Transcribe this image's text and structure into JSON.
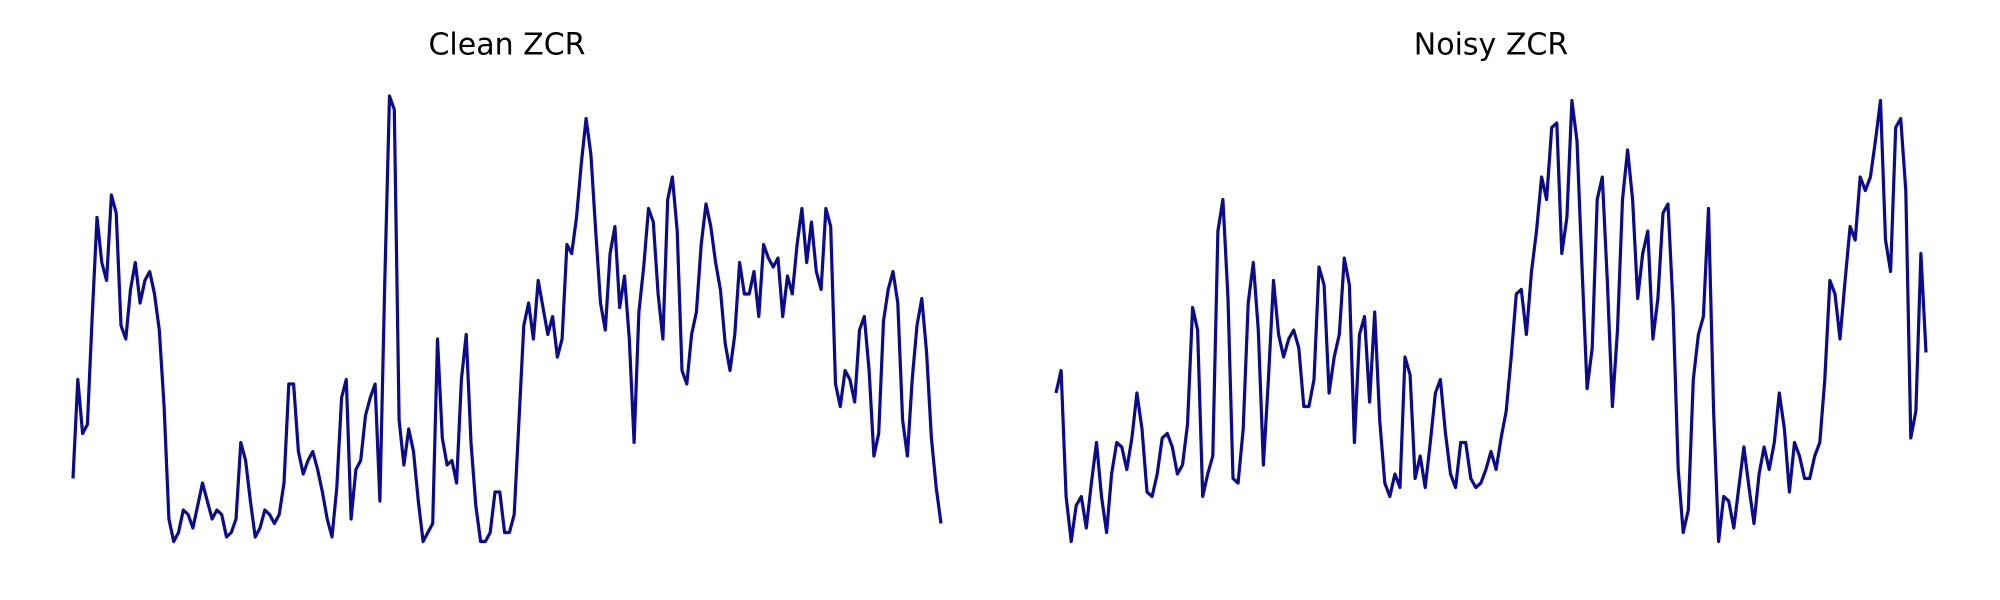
{
  "chart_data": [
    {
      "type": "line",
      "title": "Clean ZCR",
      "color": "#0b0b8b",
      "ylim": [
        0,
        1
      ],
      "values": [
        0.15,
        0.37,
        0.25,
        0.27,
        0.51,
        0.73,
        0.63,
        0.59,
        0.78,
        0.74,
        0.49,
        0.46,
        0.57,
        0.63,
        0.54,
        0.59,
        0.61,
        0.56,
        0.48,
        0.31,
        0.06,
        0.01,
        0.03,
        0.08,
        0.07,
        0.04,
        0.09,
        0.14,
        0.1,
        0.06,
        0.08,
        0.07,
        0.02,
        0.03,
        0.06,
        0.23,
        0.19,
        0.1,
        0.02,
        0.04,
        0.08,
        0.07,
        0.05,
        0.07,
        0.14,
        0.36,
        0.36,
        0.21,
        0.16,
        0.19,
        0.21,
        0.17,
        0.12,
        0.06,
        0.02,
        0.13,
        0.33,
        0.37,
        0.06,
        0.17,
        0.19,
        0.29,
        0.33,
        0.36,
        0.1,
        0.58,
        1.0,
        0.97,
        0.28,
        0.18,
        0.26,
        0.21,
        0.1,
        0.01,
        0.03,
        0.05,
        0.46,
        0.24,
        0.18,
        0.19,
        0.14,
        0.37,
        0.47,
        0.23,
        0.09,
        0.01,
        0.01,
        0.03,
        0.12,
        0.12,
        0.03,
        0.03,
        0.07,
        0.28,
        0.49,
        0.54,
        0.46,
        0.59,
        0.53,
        0.47,
        0.51,
        0.42,
        0.46,
        0.67,
        0.65,
        0.73,
        0.85,
        0.95,
        0.87,
        0.7,
        0.54,
        0.48,
        0.65,
        0.71,
        0.53,
        0.6,
        0.46,
        0.23,
        0.52,
        0.62,
        0.75,
        0.72,
        0.56,
        0.46,
        0.77,
        0.82,
        0.7,
        0.39,
        0.36,
        0.47,
        0.52,
        0.67,
        0.76,
        0.71,
        0.63,
        0.57,
        0.45,
        0.39,
        0.47,
        0.63,
        0.56,
        0.56,
        0.61,
        0.51,
        0.67,
        0.64,
        0.62,
        0.64,
        0.51,
        0.6,
        0.56,
        0.67,
        0.75,
        0.63,
        0.72,
        0.61,
        0.57,
        0.75,
        0.71,
        0.36,
        0.31,
        0.39,
        0.37,
        0.32,
        0.48,
        0.51,
        0.39,
        0.2,
        0.25,
        0.5,
        0.57,
        0.61,
        0.54,
        0.28,
        0.2,
        0.37,
        0.49,
        0.55,
        0.43,
        0.24,
        0.13,
        0.05
      ]
    },
    {
      "type": "line",
      "title": "Noisy ZCR",
      "color": "#0b0b8b",
      "ylim": [
        0,
        1
      ],
      "values": [
        0.34,
        0.39,
        0.11,
        0.01,
        0.09,
        0.11,
        0.04,
        0.14,
        0.23,
        0.11,
        0.03,
        0.16,
        0.23,
        0.22,
        0.17,
        0.24,
        0.34,
        0.26,
        0.12,
        0.11,
        0.16,
        0.24,
        0.25,
        0.22,
        0.16,
        0.18,
        0.27,
        0.53,
        0.48,
        0.11,
        0.16,
        0.2,
        0.7,
        0.77,
        0.55,
        0.15,
        0.14,
        0.26,
        0.54,
        0.63,
        0.48,
        0.18,
        0.37,
        0.59,
        0.47,
        0.42,
        0.46,
        0.48,
        0.44,
        0.31,
        0.31,
        0.37,
        0.62,
        0.58,
        0.34,
        0.42,
        0.47,
        0.64,
        0.58,
        0.23,
        0.47,
        0.51,
        0.32,
        0.52,
        0.28,
        0.14,
        0.11,
        0.16,
        0.13,
        0.42,
        0.38,
        0.15,
        0.2,
        0.13,
        0.23,
        0.34,
        0.37,
        0.25,
        0.16,
        0.13,
        0.23,
        0.23,
        0.15,
        0.13,
        0.14,
        0.17,
        0.21,
        0.17,
        0.24,
        0.3,
        0.42,
        0.56,
        0.57,
        0.47,
        0.61,
        0.7,
        0.82,
        0.77,
        0.93,
        0.94,
        0.65,
        0.73,
        0.99,
        0.9,
        0.62,
        0.35,
        0.44,
        0.77,
        0.82,
        0.59,
        0.31,
        0.48,
        0.77,
        0.88,
        0.77,
        0.55,
        0.65,
        0.7,
        0.46,
        0.55,
        0.74,
        0.76,
        0.53,
        0.17,
        0.03,
        0.08,
        0.37,
        0.47,
        0.51,
        0.75,
        0.3,
        0.01,
        0.11,
        0.1,
        0.04,
        0.13,
        0.22,
        0.13,
        0.05,
        0.16,
        0.22,
        0.17,
        0.23,
        0.34,
        0.26,
        0.12,
        0.23,
        0.2,
        0.15,
        0.15,
        0.2,
        0.23,
        0.37,
        0.59,
        0.56,
        0.46,
        0.59,
        0.71,
        0.68,
        0.82,
        0.79,
        0.82,
        0.9,
        0.99,
        0.68,
        0.61,
        0.93,
        0.95,
        0.79,
        0.24,
        0.3,
        0.65,
        0.43
      ]
    }
  ]
}
